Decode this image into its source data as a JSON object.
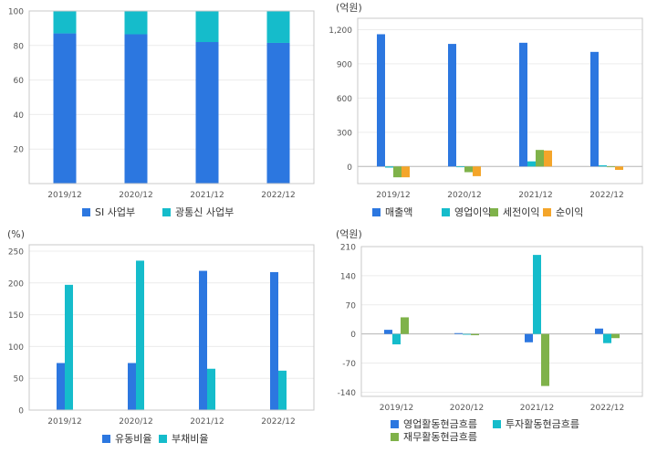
{
  "chart_data": [
    {
      "type": "bar",
      "stacked": true,
      "unit": "",
      "categories": [
        "2019/12",
        "2020/12",
        "2021/12",
        "2022/12"
      ],
      "ylim": [
        0,
        100
      ],
      "yticks": [
        20,
        40,
        60,
        80,
        100
      ],
      "ytick_labels": [
        "20",
        "40",
        "60",
        "80",
        "100"
      ],
      "grid": true,
      "legend_position": "bottom",
      "series": [
        {
          "name": "SI 사업부",
          "color": "#2c77e0",
          "values": [
            87,
            86.5,
            82,
            81.5
          ]
        },
        {
          "name": "광통신 사업부",
          "color": "#15bccb",
          "values": [
            13,
            13.5,
            18,
            18.5
          ]
        }
      ]
    },
    {
      "type": "bar",
      "unit": "(억원)",
      "categories": [
        "2019/12",
        "2020/12",
        "2021/12",
        "2022/12"
      ],
      "ylim": [
        -150,
        1300
      ],
      "yticks": [
        0,
        300,
        600,
        900,
        1200
      ],
      "ytick_labels": [
        "0",
        "300",
        "600",
        "900",
        "1,200"
      ],
      "grid": true,
      "legend_position": "bottom",
      "series": [
        {
          "name": "매출액",
          "color": "#2c77e0",
          "values": [
            1160,
            1075,
            1085,
            1005
          ]
        },
        {
          "name": "영업이익",
          "color": "#15bccb",
          "values": [
            -10,
            -5,
            45,
            10
          ]
        },
        {
          "name": "세전이익",
          "color": "#7fb24a",
          "values": [
            -95,
            -50,
            145,
            0
          ]
        },
        {
          "name": "순이익",
          "color": "#f4a52a",
          "values": [
            -95,
            -85,
            140,
            -30
          ]
        }
      ]
    },
    {
      "type": "bar",
      "unit": "(%)",
      "categories": [
        "2019/12",
        "2020/12",
        "2021/12",
        "2022/12"
      ],
      "ylim": [
        0,
        260
      ],
      "yticks": [
        0,
        50,
        100,
        150,
        200,
        250
      ],
      "ytick_labels": [
        "0",
        "50",
        "100",
        "150",
        "200",
        "250"
      ],
      "grid": true,
      "legend_position": "bottom",
      "series": [
        {
          "name": "유동비율",
          "color": "#2c77e0",
          "values": [
            74,
            74,
            219,
            217
          ]
        },
        {
          "name": "부채비율",
          "color": "#15bccb",
          "values": [
            197,
            235,
            65,
            62
          ]
        }
      ]
    },
    {
      "type": "bar",
      "unit": "(억원)",
      "categories": [
        "2019/12",
        "2020/12",
        "2021/12",
        "2022/12"
      ],
      "ylim": [
        -150,
        210
      ],
      "yticks": [
        -140,
        -70,
        0,
        70,
        140,
        210
      ],
      "ytick_labels": [
        "-140",
        "-70",
        "0",
        "70",
        "140",
        "210"
      ],
      "grid": true,
      "legend_position": "bottom",
      "series": [
        {
          "name": "영업활동현금흐름",
          "color": "#2c77e0",
          "values": [
            10,
            2,
            -20,
            13
          ]
        },
        {
          "name": "투자활동현금흐름",
          "color": "#15bccb",
          "values": [
            -25,
            0,
            190,
            -22
          ]
        },
        {
          "name": "재무활동현금흐름",
          "color": "#7fb24a",
          "values": [
            40,
            -3,
            -125,
            -10
          ]
        }
      ]
    }
  ]
}
